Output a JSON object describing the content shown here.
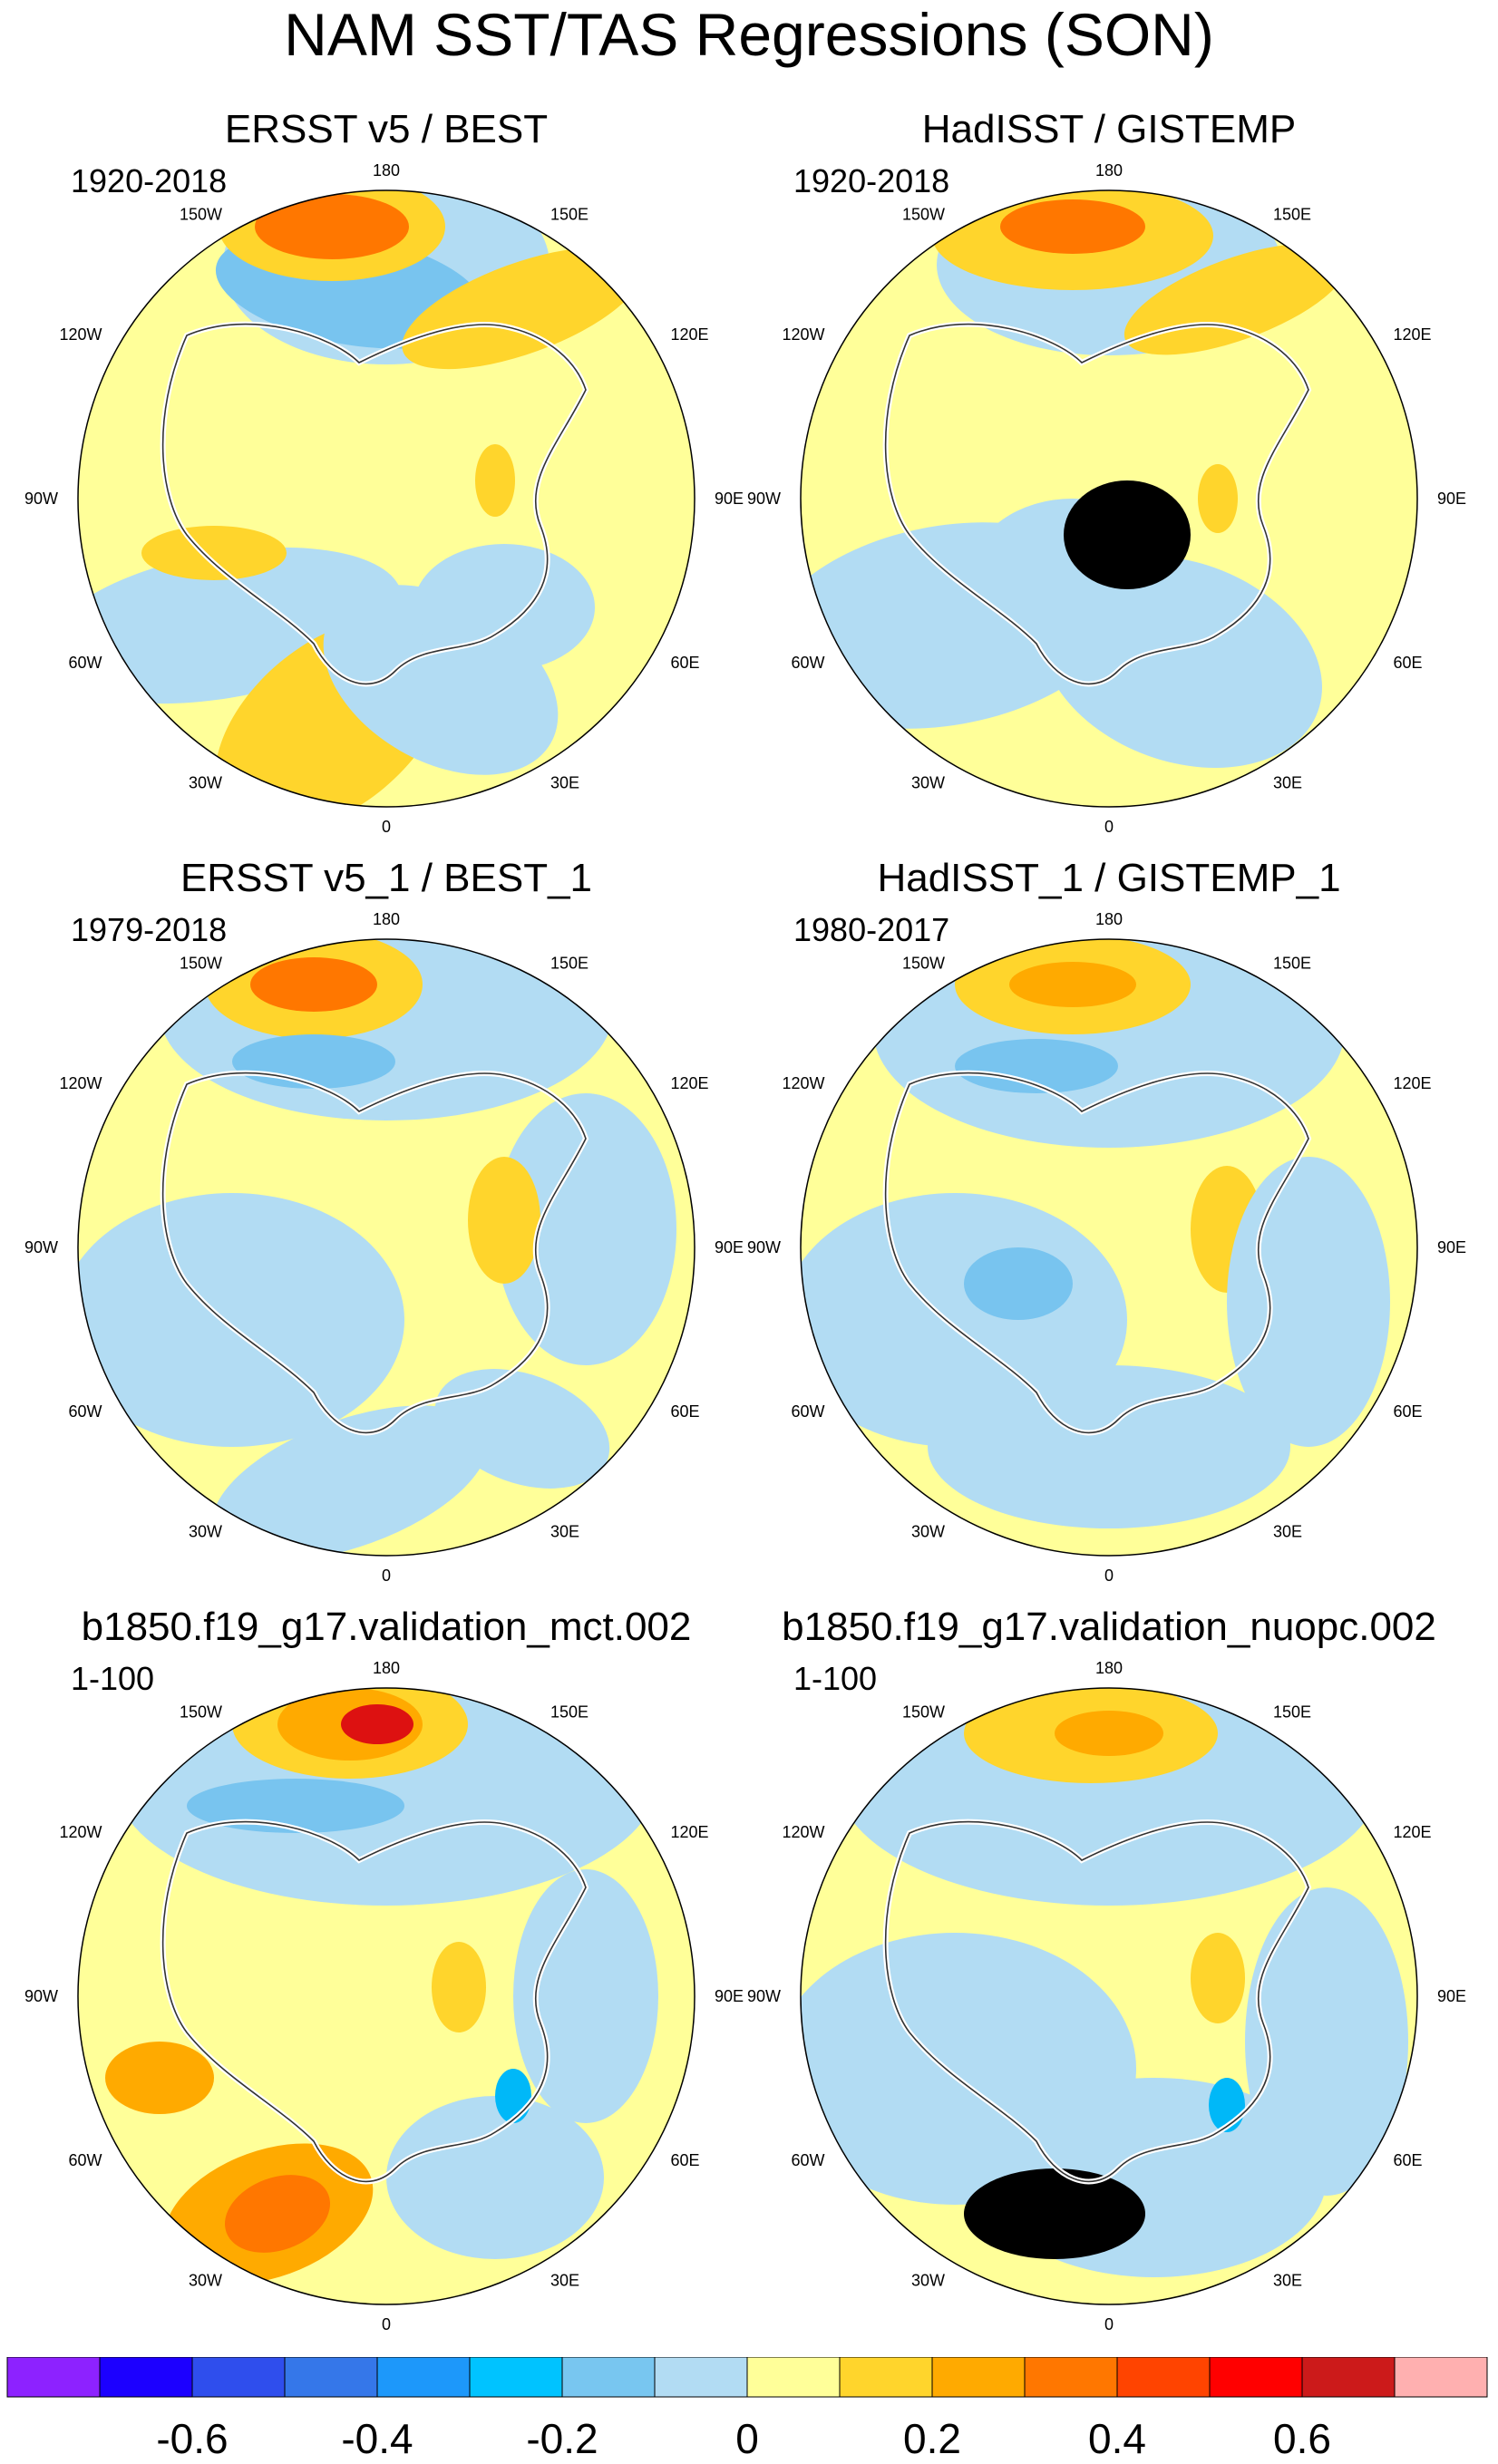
{
  "title": "NAM SST/TAS Regressions (SON)",
  "lon_labels": [
    "180",
    "150E",
    "120E",
    "90E",
    "60E",
    "30E",
    "0",
    "30W",
    "60W",
    "90W",
    "120W",
    "150W"
  ],
  "palette": {
    "ocean_pos_1": "#ffff99",
    "pos_2": "#ffd52c",
    "pos_3": "#ffaa00",
    "pos_4": "#ff7700",
    "pos_5": "#ff4400",
    "pos_6": "#dd1111",
    "neg_1": "#b2dcf3",
    "neg_2": "#78c4ef",
    "neg_3": "#00b8f8",
    "coast": "#333333",
    "land_edge": "#ffffff"
  },
  "panels": [
    {
      "id": "p1",
      "title": "ERSST v5 / BEST",
      "period": "1920-2018"
    },
    {
      "id": "p2",
      "title": "HadISST / GISTEMP",
      "period": "1920-2018"
    },
    {
      "id": "p3",
      "title": "ERSST v5_1 / BEST_1",
      "period": "1979-2018"
    },
    {
      "id": "p4",
      "title": "HadISST_1 / GISTEMP_1",
      "period": "1980-2017"
    },
    {
      "id": "p5",
      "title": "b1850.f19_g17.validation_mct.002",
      "period": "1-100"
    },
    {
      "id": "p6",
      "title": "b1850.f19_g17.validation_nuopc.002",
      "period": "1-100"
    }
  ],
  "colorbar": {
    "colors": [
      "#8d22ff",
      "#1c00ff",
      "#2f4eed",
      "#3577e9",
      "#1d98fa",
      "#00c3ff",
      "#78c6f0",
      "#b2dcf3",
      "#ffff99",
      "#ffd52c",
      "#ffaa00",
      "#ff7700",
      "#ff4400",
      "#ff0000",
      "#cc1a1a",
      "#ffb0b0"
    ],
    "tick_labels": [
      "-0.6",
      "-0.4",
      "-0.2",
      "0",
      "0.2",
      "0.4",
      "0.6"
    ]
  }
}
